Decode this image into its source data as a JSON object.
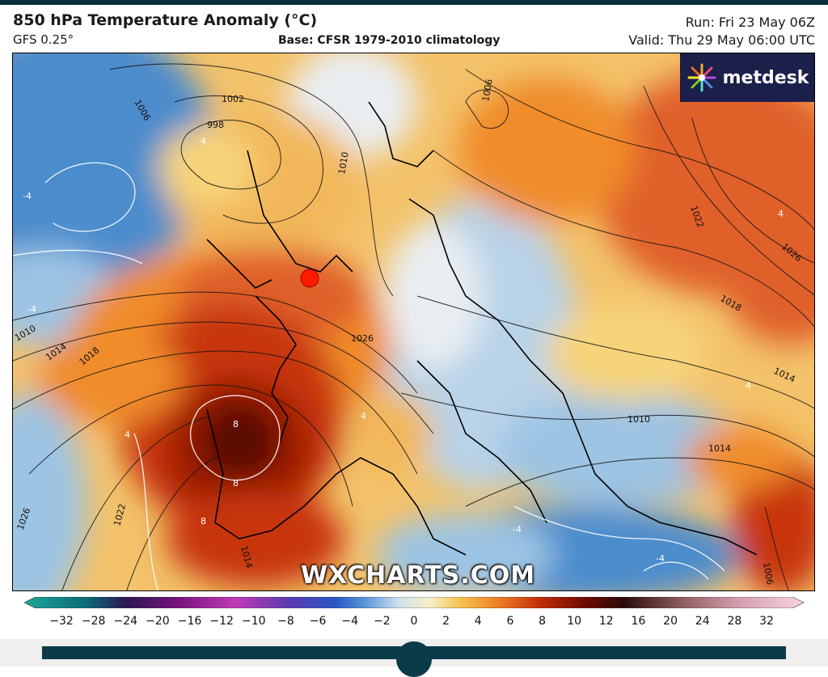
{
  "header": {
    "title": "850 hPa Temperature Anomaly (°C)",
    "model": "GFS 0.25°",
    "base": "Base: CFSR 1979-2010 climatology",
    "run": "Run: Fri 23 May 06Z",
    "valid": "Valid: Thu 29 May 06:00 UTC"
  },
  "logo": {
    "text": "metdesk",
    "icon": "metdesk-burst-icon"
  },
  "watermark": "WXCHARTS.COM",
  "colors": {
    "deep_red": "#7a0a00",
    "red": "#c8340a",
    "orange": "#f08c2a",
    "yellow": "#f7d47a",
    "pale": "#e9eef2",
    "light_blue": "#9cc4e4",
    "blue": "#4c8ccd",
    "accent": "#0b3a48"
  },
  "map": {
    "isobar_labels": [
      "1006",
      "1002",
      "998",
      "1010",
      "1026",
      "1014",
      "1018",
      "1010",
      "1014",
      "1022",
      "1026",
      "1010",
      "1014",
      "1018",
      "1026",
      "1022",
      "1006",
      "1014",
      "1006"
    ],
    "anomaly_labels": [
      "-4",
      "4",
      "8",
      "8",
      "8",
      "-4",
      "4",
      "4",
      "-4",
      "4",
      "-4",
      "4"
    ],
    "marker": "location-marker"
  },
  "colorbar": {
    "ticks": [
      "−32",
      "−28",
      "−24",
      "−20",
      "−16",
      "−12",
      "−10",
      "−8",
      "−6",
      "−4",
      "−2",
      "0",
      "2",
      "4",
      "6",
      "8",
      "10",
      "12",
      "16",
      "20",
      "24",
      "28",
      "32"
    ]
  },
  "slider": {
    "position": 0.5
  }
}
